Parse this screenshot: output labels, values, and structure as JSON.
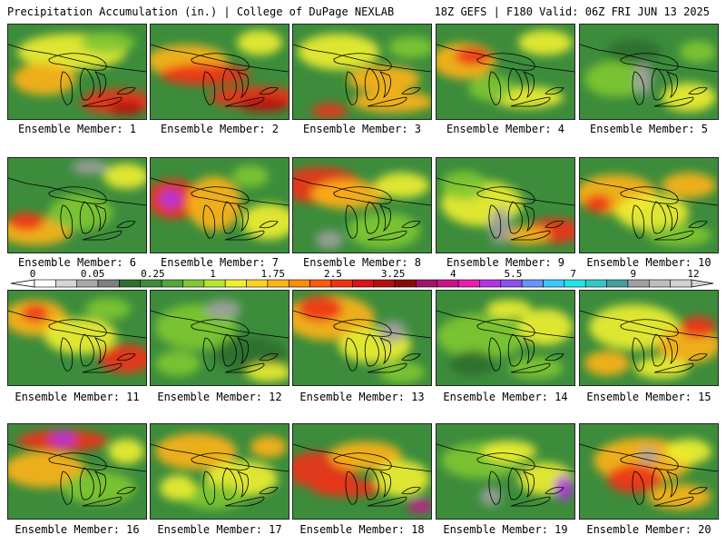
{
  "header": {
    "left": "Precipitation Accumulation (in.) | College of DuPage NEXLAB",
    "right": "18Z GEFS | F180 Valid: 06Z FRI JUN 13 2025"
  },
  "members": [
    "Ensemble Member: 1",
    "Ensemble Member: 2",
    "Ensemble Member: 3",
    "Ensemble Member: 4",
    "Ensemble Member: 5",
    "Ensemble Member: 6",
    "Ensemble Member: 7",
    "Ensemble Member: 8",
    "Ensemble Member: 9",
    "Ensemble Member: 10",
    "Ensemble Member: 11",
    "Ensemble Member: 12",
    "Ensemble Member: 13",
    "Ensemble Member: 14",
    "Ensemble Member: 15",
    "Ensemble Member: 16",
    "Ensemble Member: 17",
    "Ensemble Member: 18",
    "Ensemble Member: 19",
    "Ensemble Member: 20"
  ],
  "colorbar": {
    "labels": [
      "0",
      "0.05",
      "0.25",
      "1",
      "1.75",
      "2.5",
      "3.25",
      "4",
      "5.5",
      "7",
      "9",
      "12"
    ],
    "colors": [
      "#ffffff",
      "#d6d6d6",
      "#a8a8a8",
      "#808080",
      "#2f6f2f",
      "#3c8c3c",
      "#4fa83a",
      "#7fc832",
      "#b4e632",
      "#f0f032",
      "#ffd21e",
      "#ffb414",
      "#ff8c0a",
      "#ff5a0a",
      "#f03214",
      "#dc1414",
      "#b40f0f",
      "#8c0a0a",
      "#a0146e",
      "#c8148c",
      "#e61eb4",
      "#b432e6",
      "#8c50f0",
      "#6496ff",
      "#3cc8ff",
      "#1ee6e6",
      "#32c8c8",
      "#46a0a0",
      "#a0a0a0",
      "#bebebe",
      "#d2d2d2"
    ]
  }
}
